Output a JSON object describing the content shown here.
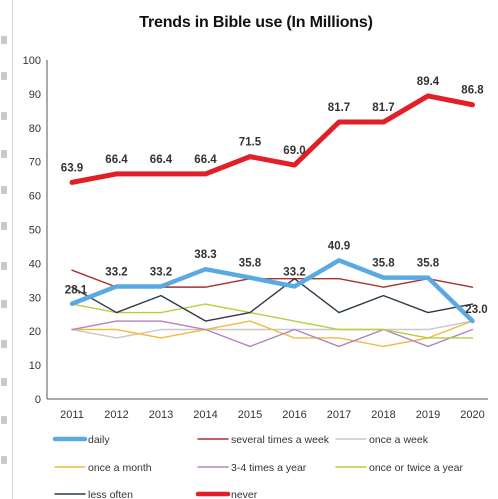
{
  "chart_data": {
    "type": "line",
    "title": "Trends in Bible use (In Millions)",
    "xlabel": "",
    "ylabel": "",
    "ylim": [
      0,
      100
    ],
    "yticks": [
      0,
      10,
      20,
      30,
      40,
      50,
      60,
      70,
      80,
      90,
      100
    ],
    "categories": [
      "2011",
      "2012",
      "2013",
      "2014",
      "2015",
      "2016",
      "2017",
      "2018",
      "2019",
      "2020"
    ],
    "grid": "none",
    "legend_position": "bottom",
    "series": [
      {
        "name": "daily",
        "color": "#5ba9e3",
        "width": 4.5,
        "labeled": true,
        "values": [
          28.1,
          33.2,
          33.2,
          38.3,
          35.8,
          33.2,
          40.9,
          35.8,
          35.8,
          23.0
        ],
        "labels": [
          "28.1",
          "33.2",
          "33.2",
          "38.3",
          "35.8",
          "33.2",
          "40.9",
          "35.8",
          "35.8",
          "23.0"
        ]
      },
      {
        "name": "several times a week",
        "color": "#a5322d",
        "width": 1.4,
        "values": [
          38,
          33,
          33,
          33,
          35.5,
          35.5,
          35.5,
          33,
          35.5,
          33
        ]
      },
      {
        "name": "once a week",
        "color": "#c8c8c8",
        "width": 1.4,
        "values": [
          20.5,
          18,
          20.5,
          20.5,
          20.5,
          20.5,
          20.5,
          20.5,
          20.5,
          23
        ]
      },
      {
        "name": "once a month",
        "color": "#f2b93b",
        "width": 1.4,
        "values": [
          20.5,
          20.5,
          18,
          20.5,
          23,
          18,
          18,
          15.5,
          18,
          23
        ]
      },
      {
        "name": "3-4 times a year",
        "color": "#b583c0",
        "width": 1.4,
        "values": [
          20.5,
          23,
          23,
          20.5,
          15.5,
          20.5,
          15.5,
          20.5,
          15.5,
          20.5
        ]
      },
      {
        "name": "once or twice a year",
        "color": "#b6cf3b",
        "width": 1.4,
        "values": [
          28,
          25.5,
          25.5,
          28,
          25.5,
          23,
          20.5,
          20.5,
          18,
          18
        ]
      },
      {
        "name": "less often",
        "color": "#2b3b4c",
        "width": 1.4,
        "values": [
          33,
          25.5,
          30.5,
          23,
          25.5,
          35.5,
          25.5,
          30.5,
          25.5,
          28
        ]
      },
      {
        "name": "never",
        "color": "#e21f26",
        "width": 5,
        "values": [
          63.9,
          66.4,
          66.4,
          66.4,
          71.5,
          69.0,
          81.7,
          81.7,
          89.4,
          86.8
        ],
        "labels": [
          "63.9",
          "66.4",
          "66.4",
          "66.4",
          "71.5",
          "69.0",
          "81.7",
          "81.7",
          "89.4",
          "86.8"
        ]
      }
    ]
  }
}
